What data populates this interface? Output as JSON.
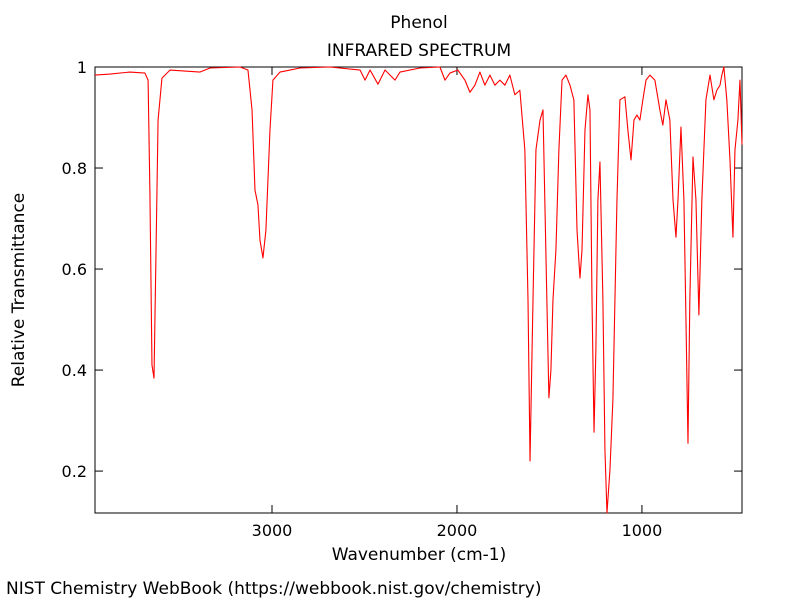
{
  "chart_data": {
    "type": "line",
    "title": "Phenol",
    "subtitle": "INFRARED SPECTRUM",
    "x_label": "Wavenumber (cm-1)",
    "y_label": "Relative Transmittance",
    "source": "NIST Chemistry WebBook (https://webbook.nist.gov/chemistry)",
    "xlim": [
      3957,
      459
    ],
    "ylim": [
      0.117,
      1
    ],
    "xticks": [
      3000,
      2000,
      1000
    ],
    "yticks": [
      0.2,
      0.4,
      0.6,
      0.8,
      1
    ],
    "x": [
      3957,
      3876,
      3768,
      3687,
      3670,
      3660,
      3649,
      3638,
      3627,
      3616,
      3595,
      3551,
      3389,
      3335,
      3173,
      3130,
      3108,
      3092,
      3076,
      3065,
      3049,
      3033,
      3011,
      2995,
      2957,
      2903,
      2849,
      2687,
      2524,
      2497,
      2470,
      2427,
      2389,
      2335,
      2308,
      2200,
      2092,
      2065,
      2038,
      1995,
      1957,
      1930,
      1903,
      1876,
      1849,
      1822,
      1795,
      1768,
      1741,
      1714,
      1687,
      1660,
      1633,
      1616,
      1605,
      1589,
      1573,
      1551,
      1535,
      1514,
      1503,
      1492,
      1481,
      1465,
      1449,
      1432,
      1411,
      1389,
      1368,
      1351,
      1335,
      1324,
      1308,
      1292,
      1281,
      1270,
      1259,
      1249,
      1238,
      1227,
      1211,
      1200,
      1189,
      1173,
      1157,
      1135,
      1119,
      1092,
      1076,
      1059,
      1043,
      1027,
      1011,
      995,
      978,
      957,
      930,
      903,
      887,
      870,
      849,
      832,
      816,
      805,
      789,
      773,
      762,
      751,
      741,
      724,
      708,
      692,
      676,
      654,
      632,
      611,
      595,
      578,
      568,
      557,
      541,
      524,
      508,
      497,
      481,
      470,
      459
    ],
    "series": [
      {
        "color": "#ff0000",
        "values": [
          0.984,
          0.986,
          0.99,
          0.988,
          0.974,
          0.749,
          0.41,
          0.384,
          0.638,
          0.895,
          0.978,
          0.994,
          0.99,
          0.998,
          1.0,
          0.994,
          0.915,
          0.756,
          0.727,
          0.657,
          0.622,
          0.677,
          0.875,
          0.974,
          0.99,
          0.994,
          0.998,
          1.0,
          0.994,
          0.974,
          0.994,
          0.966,
          0.994,
          0.974,
          0.99,
          0.998,
          1.0,
          0.974,
          0.988,
          0.994,
          0.974,
          0.95,
          0.964,
          0.99,
          0.964,
          0.984,
          0.964,
          0.974,
          0.964,
          0.984,
          0.945,
          0.954,
          0.836,
          0.539,
          0.22,
          0.539,
          0.836,
          0.895,
          0.915,
          0.539,
          0.345,
          0.4,
          0.539,
          0.638,
          0.836,
          0.974,
          0.984,
          0.964,
          0.935,
          0.677,
          0.582,
          0.638,
          0.875,
          0.945,
          0.915,
          0.539,
          0.277,
          0.44,
          0.737,
          0.812,
          0.539,
          0.242,
          0.117,
          0.202,
          0.341,
          0.737,
          0.935,
          0.941,
          0.875,
          0.816,
          0.895,
          0.905,
          0.895,
          0.935,
          0.974,
          0.984,
          0.974,
          0.915,
          0.885,
          0.935,
          0.895,
          0.737,
          0.663,
          0.737,
          0.881,
          0.737,
          0.499,
          0.255,
          0.539,
          0.822,
          0.737,
          0.509,
          0.737,
          0.935,
          0.984,
          0.935,
          0.954,
          0.964,
          0.984,
          1.0,
          0.935,
          0.816,
          0.663,
          0.836,
          0.895,
          0.974,
          0.846
        ]
      }
    ]
  }
}
